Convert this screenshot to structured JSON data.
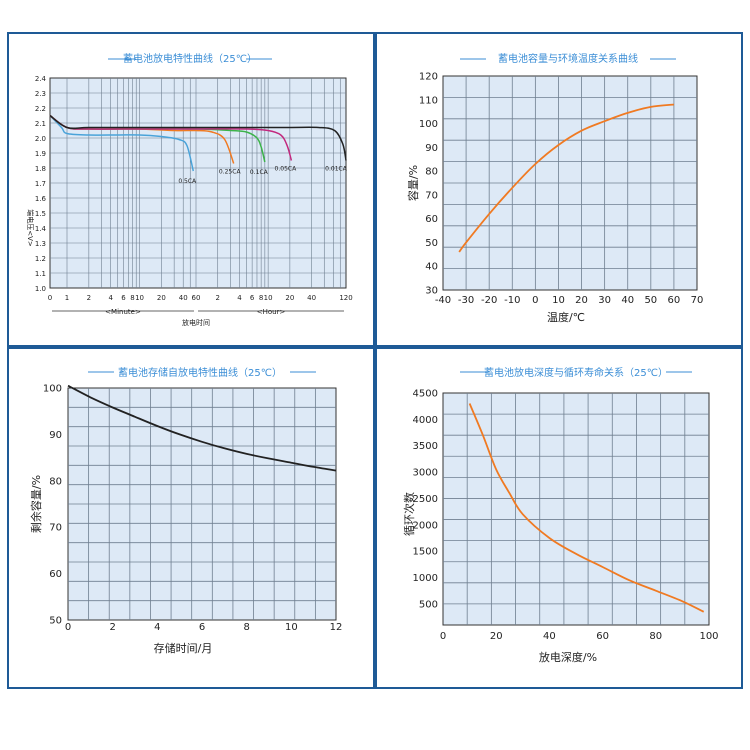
{
  "colors": {
    "frame": "#1e5a96",
    "title": "#3b8ed6",
    "plot_bg": "#dde9f6",
    "grid": "#6f7f90",
    "axis_text": "#222222",
    "orange": "#f07a22",
    "black": "#222222",
    "blue": "#4aa3d9"
  },
  "chart_data": [
    {
      "type": "line",
      "title": "蓄电池放电特性曲线（25℃）",
      "ylabel": "端电压<V>",
      "xlabel": "放电时间",
      "x_scale": "log",
      "x_unit_labels": [
        "<Minute>",
        "<Hour>"
      ],
      "x_tick_labels": [
        "0",
        "1",
        "2",
        "4",
        "6",
        "8",
        "10",
        "20",
        "40",
        "60",
        "2",
        "4",
        "6",
        "8",
        "10",
        "20",
        "40",
        "120"
      ],
      "x_tick_values_minutes": [
        0.5,
        1,
        2,
        4,
        6,
        8,
        10,
        20,
        40,
        60,
        120,
        240,
        360,
        480,
        600,
        1200,
        2400,
        7200
      ],
      "y_ticks": [
        "2.4",
        "2.3",
        "2.2",
        "2.1",
        "2.0",
        "1.9",
        "1.8",
        "1.7",
        "1.6",
        "1.5",
        "1.4",
        "1.3",
        "1.2",
        "1.1",
        "1.0"
      ],
      "ylim": [
        1.0,
        2.4
      ],
      "series": [
        {
          "name": "0.5CA",
          "color": "#4aa3d9",
          "x_minutes": [
            0.5,
            0.8,
            1,
            2,
            5,
            10,
            20,
            35,
            45,
            55
          ],
          "y": [
            2.15,
            2.07,
            2.03,
            2.02,
            2.02,
            2.02,
            2.01,
            1.99,
            1.95,
            1.78
          ]
        },
        {
          "name": "0.25CA",
          "color": "#f07a22",
          "x_minutes": [
            0.5,
            1,
            2,
            5,
            10,
            30,
            60,
            100,
            150,
            200
          ],
          "y": [
            2.15,
            2.07,
            2.06,
            2.06,
            2.06,
            2.05,
            2.05,
            2.04,
            1.99,
            1.83
          ]
        },
        {
          "name": "0.1CA",
          "color": "#3cb34a",
          "x_minutes": [
            0.5,
            1,
            2,
            10,
            60,
            180,
            300,
            420,
            480,
            540
          ],
          "y": [
            2.15,
            2.07,
            2.06,
            2.06,
            2.06,
            2.05,
            2.04,
            2.0,
            1.94,
            1.84
          ]
        },
        {
          "name": "0.05CA",
          "color": "#c2287e",
          "x_minutes": [
            0.5,
            1,
            2,
            10,
            60,
            300,
            600,
            900,
            1100,
            1260
          ],
          "y": [
            2.15,
            2.07,
            2.06,
            2.06,
            2.06,
            2.06,
            2.05,
            2.02,
            1.95,
            1.85
          ]
        },
        {
          "name": "0.01CA",
          "color": "#222222",
          "x_minutes": [
            0.5,
            1,
            2,
            10,
            100,
            1000,
            3000,
            5000,
            6500,
            7200
          ],
          "y": [
            2.15,
            2.07,
            2.07,
            2.07,
            2.07,
            2.07,
            2.07,
            2.05,
            1.96,
            1.85
          ]
        }
      ]
    },
    {
      "type": "line",
      "title": "蓄电池容量与环境温度关系曲线",
      "xlabel": "温度/℃",
      "ylabel": "容量/%",
      "xlim": [
        -40,
        70
      ],
      "ylim": [
        30,
        120
      ],
      "x_ticks": [
        "-40",
        "-30",
        "-20",
        "-10",
        "0",
        "10",
        "20",
        "30",
        "40",
        "50",
        "60",
        "70"
      ],
      "y_ticks": [
        "30",
        "40",
        "50",
        "60",
        "70",
        "80",
        "90",
        "100",
        "110",
        "120"
      ],
      "series": [
        {
          "color": "#f07a22",
          "x": [
            -33,
            -30,
            -20,
            -10,
            0,
            10,
            20,
            30,
            40,
            50,
            60
          ],
          "y": [
            46,
            50,
            62,
            73,
            83,
            91,
            97,
            101,
            104.5,
            107,
            108
          ]
        }
      ]
    },
    {
      "type": "line",
      "title": "蓄电池存储自放电特性曲线（25℃）",
      "xlabel": "存储时间/月",
      "ylabel": "剩余容量/%",
      "xlim": [
        0,
        12
      ],
      "ylim": [
        50,
        100
      ],
      "x_ticks": [
        "0",
        "2",
        "4",
        "6",
        "8",
        "10",
        "12"
      ],
      "y_ticks": [
        "50",
        "60",
        "70",
        "80",
        "90",
        "100"
      ],
      "series": [
        {
          "color": "#222222",
          "x": [
            0,
            1,
            2,
            3,
            4,
            5,
            6,
            7,
            8,
            9,
            10,
            11,
            12
          ],
          "y": [
            100.5,
            98,
            95.8,
            93.8,
            91.8,
            90,
            88.4,
            87,
            85.8,
            84.8,
            83.9,
            83,
            82.2
          ]
        }
      ]
    },
    {
      "type": "line",
      "title": "蓄电池放电深度与循环寿命关系（25℃）",
      "xlabel": "放电深度/%",
      "ylabel": "循环次数",
      "xlim": [
        0,
        100
      ],
      "ylim": [
        100,
        4500
      ],
      "x_ticks": [
        "0",
        "20",
        "40",
        "60",
        "80",
        "100"
      ],
      "y_ticks": [
        "500",
        "1000",
        "1500",
        "2000",
        "2500",
        "3000",
        "3500",
        "4000",
        "4500"
      ],
      "series": [
        {
          "color": "#f07a22",
          "x": [
            10,
            15,
            20,
            25,
            30,
            40,
            50,
            60,
            70,
            80,
            90,
            98
          ],
          "y": [
            4300,
            3700,
            3050,
            2600,
            2200,
            1750,
            1450,
            1200,
            950,
            750,
            550,
            350
          ]
        }
      ]
    }
  ]
}
